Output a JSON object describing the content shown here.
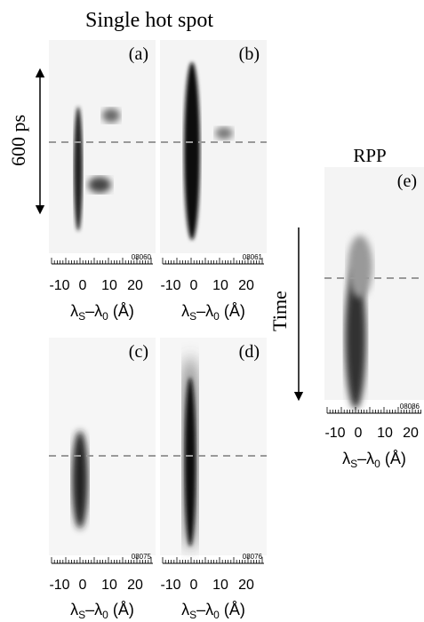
{
  "title": "Single hot spot",
  "rpp_label": "RPP",
  "time_label": "Time",
  "scale_label": "600 ps",
  "panels": [
    {
      "label": "(a)",
      "shot": "08060",
      "tick_labels": [
        "-10",
        "0",
        "10",
        "20"
      ],
      "axis_label": [
        "λ",
        "S",
        "–λ",
        "0",
        " (Å)"
      ]
    },
    {
      "label": "(b)",
      "shot": "08061",
      "tick_labels": [
        "-10",
        "0",
        "10",
        "20"
      ],
      "axis_label": [
        "λ",
        "S",
        "–λ",
        "0",
        " (Å)"
      ]
    },
    {
      "label": "(c)",
      "shot": "08075",
      "tick_labels": [
        "-10",
        "0",
        "10",
        "20"
      ],
      "axis_label": [
        "λ",
        "S",
        "–λ",
        "0",
        " (Å)"
      ]
    },
    {
      "label": "(d)",
      "shot": "08076",
      "tick_labels": [
        "-10",
        "0",
        "10",
        "20"
      ],
      "axis_label": [
        "λ",
        "S",
        "–λ",
        "0",
        " (Å)"
      ]
    },
    {
      "label": "(e)",
      "shot": "08086",
      "tick_labels": [
        "-10",
        "0",
        "10",
        "20"
      ],
      "axis_label": [
        "λ",
        "S",
        "–λ",
        "0",
        " (Å)"
      ]
    }
  ]
}
